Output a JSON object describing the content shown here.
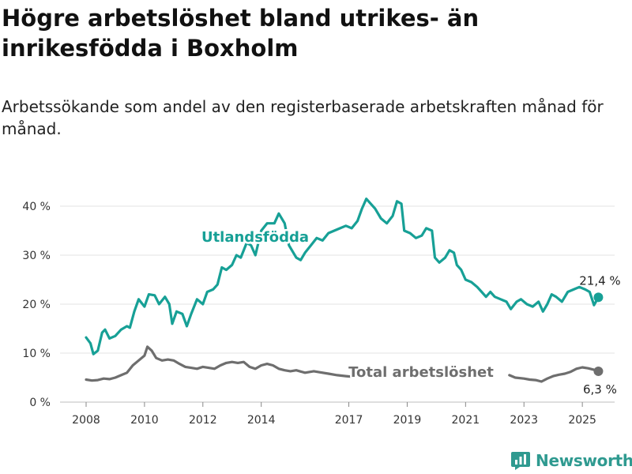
{
  "title": "Högre arbetslöshet bland utrikes- än inrikesfödda i Boxholm",
  "subtitle": "Arbetssökande som andel av den registerbaserade arbetskraften månad för månad.",
  "brand": "Newsworthy",
  "colors": {
    "utlandsfodda": "#17a096",
    "total": "#6e6e6e",
    "grid": "#e3e3e3",
    "axis_text": "#333333"
  },
  "chart_data": {
    "type": "line",
    "title": "Högre arbetslöshet bland utrikes- än inrikesfödda i Boxholm",
    "subtitle": "Arbetssökande som andel av den registerbaserade arbetskraften månad för månad.",
    "xlabel": "",
    "ylabel": "",
    "xlim": [
      2008.0,
      2025.7
    ],
    "ylim": [
      0,
      40
    ],
    "y_ticks": [
      0,
      10,
      20,
      30,
      40
    ],
    "y_tick_labels": [
      "0 %",
      "10 %",
      "20 %",
      "30 %",
      "40 %"
    ],
    "x_ticks": [
      2008,
      2010,
      2012,
      2014,
      2017,
      2019,
      2021,
      2023,
      2025
    ],
    "x_tick_labels": [
      "2008",
      "2010",
      "2012",
      "2014",
      "2017",
      "2019",
      "2021",
      "2023",
      "2025"
    ],
    "grid": true,
    "series": [
      {
        "name": "Utlandsfödda",
        "end_label": "21,4 %",
        "points": [
          [
            2008.0,
            13.2
          ],
          [
            2008.15,
            12.0
          ],
          [
            2008.25,
            9.8
          ],
          [
            2008.4,
            10.5
          ],
          [
            2008.55,
            14.2
          ],
          [
            2008.65,
            14.8
          ],
          [
            2008.8,
            13.0
          ],
          [
            2009.0,
            13.5
          ],
          [
            2009.2,
            14.8
          ],
          [
            2009.4,
            15.5
          ],
          [
            2009.5,
            15.2
          ],
          [
            2009.65,
            18.5
          ],
          [
            2009.8,
            21.0
          ],
          [
            2010.0,
            19.5
          ],
          [
            2010.15,
            22.0
          ],
          [
            2010.35,
            21.8
          ],
          [
            2010.5,
            20.0
          ],
          [
            2010.7,
            21.5
          ],
          [
            2010.85,
            20.0
          ],
          [
            2010.95,
            16.0
          ],
          [
            2011.1,
            18.5
          ],
          [
            2011.3,
            18.0
          ],
          [
            2011.45,
            15.5
          ],
          [
            2011.6,
            18.0
          ],
          [
            2011.8,
            21.0
          ],
          [
            2012.0,
            20.0
          ],
          [
            2012.15,
            22.5
          ],
          [
            2012.35,
            23.0
          ],
          [
            2012.5,
            24.0
          ],
          [
            2012.65,
            27.5
          ],
          [
            2012.8,
            27.0
          ],
          [
            2013.0,
            28.0
          ],
          [
            2013.15,
            30.0
          ],
          [
            2013.3,
            29.5
          ],
          [
            2013.5,
            32.5
          ],
          [
            2013.65,
            32.0
          ],
          [
            2013.8,
            30.0
          ],
          [
            2014.0,
            35.0
          ],
          [
            2014.2,
            36.5
          ],
          [
            2014.45,
            36.5
          ],
          [
            2014.6,
            38.5
          ],
          [
            2014.8,
            36.5
          ],
          [
            2014.95,
            32.0
          ],
          [
            2015.2,
            29.5
          ],
          [
            2015.35,
            29.0
          ],
          [
            2015.5,
            30.5
          ],
          [
            2015.7,
            32.0
          ],
          [
            2015.9,
            33.5
          ],
          [
            2016.1,
            33.0
          ],
          [
            2016.3,
            34.5
          ],
          [
            2016.5,
            35.0
          ],
          [
            2016.7,
            35.5
          ],
          [
            2016.9,
            36.0
          ],
          [
            2017.1,
            35.5
          ],
          [
            2017.3,
            37.0
          ],
          [
            2017.45,
            39.5
          ],
          [
            2017.6,
            41.5
          ],
          [
            2017.75,
            40.5
          ],
          [
            2017.9,
            39.5
          ],
          [
            2018.1,
            37.5
          ],
          [
            2018.3,
            36.5
          ],
          [
            2018.5,
            38.0
          ],
          [
            2018.65,
            41.0
          ],
          [
            2018.8,
            40.5
          ],
          [
            2018.9,
            35.0
          ],
          [
            2019.1,
            34.5
          ],
          [
            2019.3,
            33.5
          ],
          [
            2019.5,
            34.0
          ],
          [
            2019.65,
            35.5
          ],
          [
            2019.85,
            35.0
          ],
          [
            2019.95,
            29.5
          ],
          [
            2020.1,
            28.5
          ],
          [
            2020.3,
            29.5
          ],
          [
            2020.45,
            31.0
          ],
          [
            2020.6,
            30.5
          ],
          [
            2020.7,
            28.0
          ],
          [
            2020.85,
            27.0
          ],
          [
            2021.0,
            25.0
          ],
          [
            2021.2,
            24.5
          ],
          [
            2021.4,
            23.5
          ],
          [
            2021.55,
            22.5
          ],
          [
            2021.7,
            21.5
          ],
          [
            2021.85,
            22.5
          ],
          [
            2022.0,
            21.5
          ],
          [
            2022.2,
            21.0
          ],
          [
            2022.4,
            20.5
          ],
          [
            2022.55,
            19.0
          ],
          [
            2022.75,
            20.5
          ],
          [
            2022.9,
            21.0
          ],
          [
            2023.1,
            20.0
          ],
          [
            2023.3,
            19.5
          ],
          [
            2023.5,
            20.5
          ],
          [
            2023.65,
            18.5
          ],
          [
            2023.8,
            20.0
          ],
          [
            2023.95,
            22.0
          ],
          [
            2024.1,
            21.5
          ],
          [
            2024.3,
            20.5
          ],
          [
            2024.5,
            22.5
          ],
          [
            2024.7,
            23.0
          ],
          [
            2024.9,
            23.5
          ],
          [
            2025.1,
            23.0
          ],
          [
            2025.25,
            22.5
          ],
          [
            2025.4,
            19.8
          ],
          [
            2025.55,
            21.4
          ]
        ]
      },
      {
        "name": "Total arbetslöshet",
        "end_label": "6,3 %",
        "points": [
          [
            2008.0,
            4.6
          ],
          [
            2008.2,
            4.4
          ],
          [
            2008.4,
            4.5
          ],
          [
            2008.6,
            4.8
          ],
          [
            2008.8,
            4.7
          ],
          [
            2009.0,
            5.0
          ],
          [
            2009.2,
            5.5
          ],
          [
            2009.4,
            6.0
          ],
          [
            2009.6,
            7.5
          ],
          [
            2009.8,
            8.5
          ],
          [
            2010.0,
            9.5
          ],
          [
            2010.1,
            11.3
          ],
          [
            2010.25,
            10.5
          ],
          [
            2010.4,
            9.0
          ],
          [
            2010.6,
            8.5
          ],
          [
            2010.8,
            8.7
          ],
          [
            2011.0,
            8.5
          ],
          [
            2011.2,
            7.8
          ],
          [
            2011.4,
            7.2
          ],
          [
            2011.6,
            7.0
          ],
          [
            2011.8,
            6.8
          ],
          [
            2012.0,
            7.2
          ],
          [
            2012.2,
            7.0
          ],
          [
            2012.4,
            6.8
          ],
          [
            2012.6,
            7.5
          ],
          [
            2012.8,
            8.0
          ],
          [
            2013.0,
            8.2
          ],
          [
            2013.2,
            8.0
          ],
          [
            2013.4,
            8.2
          ],
          [
            2013.6,
            7.2
          ],
          [
            2013.8,
            6.8
          ],
          [
            2014.0,
            7.5
          ],
          [
            2014.2,
            7.8
          ],
          [
            2014.4,
            7.5
          ],
          [
            2014.6,
            6.8
          ],
          [
            2014.8,
            6.5
          ],
          [
            2015.0,
            6.3
          ],
          [
            2015.2,
            6.5
          ],
          [
            2015.5,
            6.0
          ],
          [
            2015.8,
            6.3
          ],
          [
            2016.0,
            6.1
          ],
          [
            2016.3,
            5.8
          ],
          [
            2016.6,
            5.5
          ],
          [
            2016.9,
            5.3
          ],
          [
            2017.1,
            5.2
          ],
          [
            2022.5,
            5.5
          ],
          [
            2022.7,
            5.0
          ],
          [
            2023.0,
            4.8
          ],
          [
            2023.2,
            4.6
          ],
          [
            2023.4,
            4.5
          ],
          [
            2023.6,
            4.2
          ],
          [
            2023.8,
            4.8
          ],
          [
            2024.0,
            5.3
          ],
          [
            2024.2,
            5.6
          ],
          [
            2024.4,
            5.8
          ],
          [
            2024.6,
            6.2
          ],
          [
            2024.8,
            6.8
          ],
          [
            2025.0,
            7.1
          ],
          [
            2025.2,
            6.9
          ],
          [
            2025.4,
            6.6
          ],
          [
            2025.55,
            6.3
          ]
        ]
      }
    ],
    "annotations": [
      {
        "text": "Utlandsfödda",
        "series": "Utlandsfödda"
      },
      {
        "text": "Total arbetslöshet",
        "series": "Total arbetslöshet"
      }
    ]
  }
}
